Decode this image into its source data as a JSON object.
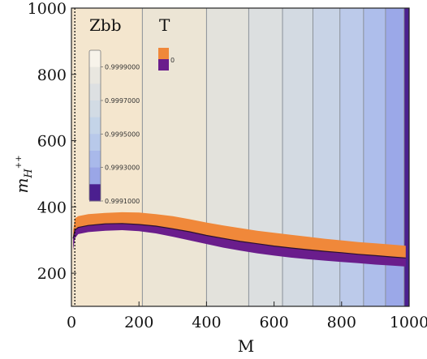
{
  "chart_data": {
    "type": "heatmap",
    "title": "",
    "xlabel": "M",
    "ylabel": "m",
    "ylabel_sub": "H",
    "ylabel_sup": "++",
    "xlim": [
      0,
      1000
    ],
    "ylim": [
      100,
      1000
    ],
    "x_ticks": [
      0,
      200,
      400,
      600,
      800,
      1000
    ],
    "y_ticks": [
      200,
      400,
      600,
      800,
      1000
    ],
    "grid": false,
    "colors": {
      "frame": "#222222",
      "band_line": "#8a9098",
      "T_high": "#f0883a",
      "T_low": "#6a1d8c",
      "T_edge": "#2a1030"
    },
    "zbb": {
      "legend_title": "Zbb",
      "legend_placement": "top-left",
      "legend_ticks": [
        "0.9999000",
        "0.9997000",
        "0.9995000",
        "0.9993000",
        "0.9991000"
      ],
      "legend_colors": [
        "#f7f3ea",
        "#e9e7e0",
        "#dde0e2",
        "#d2dbe4",
        "#c4d4e8",
        "#b8c9ea",
        "#a9b9ea",
        "#9aa6e6",
        "#4b1f8f"
      ],
      "regions": [
        {
          "x0": 0,
          "x1": 210,
          "color": "#f4e6ce"
        },
        {
          "x0": 210,
          "x1": 400,
          "color": "#ece5d5"
        },
        {
          "x0": 400,
          "x1": 525,
          "color": "#e3e2dc"
        },
        {
          "x0": 525,
          "x1": 625,
          "color": "#dcdfe0"
        },
        {
          "x0": 625,
          "x1": 715,
          "color": "#d3dae2"
        },
        {
          "x0": 715,
          "x1": 795,
          "color": "#c8d3e6"
        },
        {
          "x0": 795,
          "x1": 865,
          "color": "#bccaea"
        },
        {
          "x0": 865,
          "x1": 930,
          "color": "#aebeeb"
        },
        {
          "x0": 930,
          "x1": 985,
          "color": "#9ba8e8"
        },
        {
          "x0": 985,
          "x1": 1000,
          "color": "#4b1f8f"
        }
      ]
    },
    "T": {
      "legend_title": "T",
      "legend_tick": "0",
      "legend_colors": [
        "#f0883a",
        "#6a1d8c"
      ],
      "x": [
        5,
        10,
        20,
        50,
        100,
        150,
        200,
        250,
        300,
        350,
        400,
        450,
        500,
        550,
        600,
        650,
        700,
        750,
        800,
        850,
        900,
        950,
        990
      ],
      "upper": [
        330,
        365,
        372,
        378,
        382,
        384,
        383,
        378,
        372,
        363,
        353,
        344,
        336,
        328,
        322,
        316,
        310,
        304,
        299,
        294,
        290,
        286,
        283
      ],
      "mid": [
        305,
        330,
        338,
        344,
        349,
        350,
        347,
        342,
        334,
        325,
        314,
        305,
        296,
        289,
        282,
        276,
        271,
        266,
        262,
        257,
        253,
        249,
        246
      ],
      "lower": [
        270,
        305,
        318,
        324,
        328,
        330,
        327,
        320,
        310,
        299,
        288,
        277,
        268,
        260,
        253,
        247,
        242,
        238,
        234,
        230,
        226,
        223,
        220
      ]
    }
  }
}
